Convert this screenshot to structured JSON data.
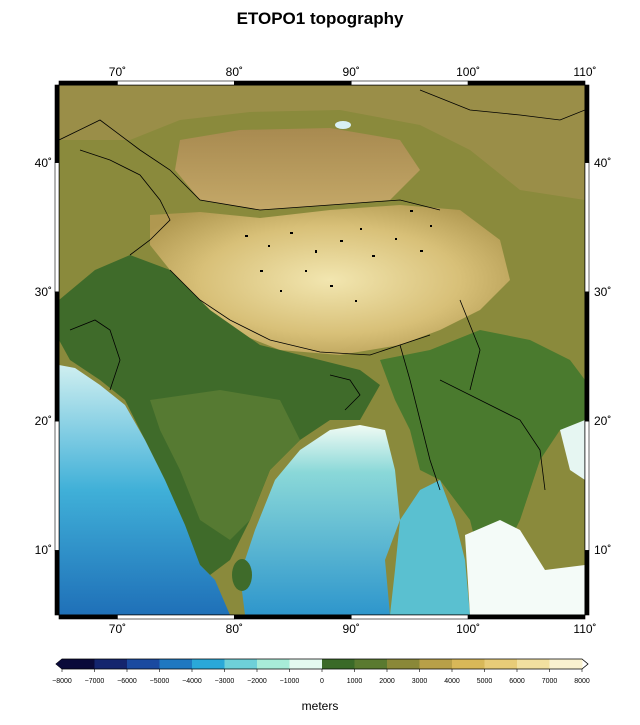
{
  "title": "ETOPO1 topography",
  "map": {
    "lon_range": [
      65,
      110
    ],
    "lat_range": [
      5,
      46
    ],
    "lon_ticks": [
      {
        "value": 70,
        "label": "70˚"
      },
      {
        "value": 80,
        "label": "80˚"
      },
      {
        "value": 90,
        "label": "90˚"
      },
      {
        "value": 100,
        "label": "100˚"
      },
      {
        "value": 110,
        "label": "110˚"
      }
    ],
    "lat_ticks": [
      {
        "value": 10,
        "label": "10˚"
      },
      {
        "value": 20,
        "label": "20˚"
      },
      {
        "value": 30,
        "label": "30˚"
      },
      {
        "value": 40,
        "label": "40˚"
      }
    ],
    "colors": {
      "ocean_deep": "#1a3a8a",
      "ocean_mid": "#2aa0d0",
      "ocean_shelf": "#bfeef0",
      "lowland": "#3f6b2a",
      "upland": "#9a9040",
      "highland": "#d8c478",
      "peak": "#f4ecc0",
      "tarim": "#b89a5a"
    }
  },
  "colorbar": {
    "ticks": [
      "−8000",
      "−7000",
      "−6000",
      "−5000",
      "−4000",
      "−3000",
      "−2000",
      "−1000",
      "0",
      "1000",
      "2000",
      "3000",
      "4000",
      "5000",
      "6000",
      "7000",
      "8000"
    ],
    "label": "meters",
    "range": [
      -8000,
      8000
    ],
    "stops": [
      "#0a0a3a",
      "#14256e",
      "#1a4aa0",
      "#1f78c0",
      "#2aa8d8",
      "#6ed0d8",
      "#a8ecd8",
      "#e4faf0",
      "#3a6a28",
      "#5a7a30",
      "#8a8838",
      "#b8a048",
      "#d8b858",
      "#e8cc78",
      "#f2e0a0",
      "#faf2d0",
      "#ffffff"
    ]
  }
}
